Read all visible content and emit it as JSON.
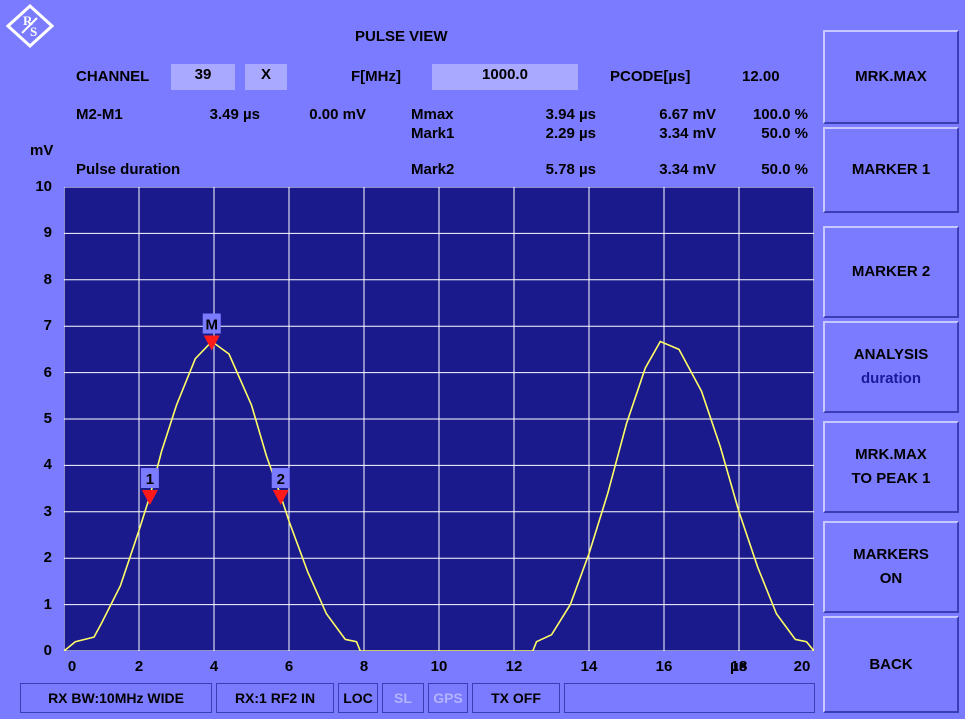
{
  "header": {
    "title": "PULSE VIEW",
    "channel_label": "CHANNEL",
    "channel_value": "39",
    "channel_suffix": "X",
    "freq_label": "F[MHz]",
    "freq_value": "1000.0",
    "pcode_label": "PCODE[µs]",
    "pcode_value": "12.00"
  },
  "readout": {
    "diff_label": "M2-M1",
    "diff_time": "3.49 µs",
    "diff_level": "0.00 mV",
    "mode_label": "Pulse duration",
    "markers": [
      {
        "name": "Mmax",
        "time": "3.94 µs",
        "level": "6.67 mV",
        "percent": "100.0 %"
      },
      {
        "name": "Mark1",
        "time": "2.29 µs",
        "level": "3.34 mV",
        "percent": "50.0 %"
      },
      {
        "name": "Mark2",
        "time": "5.78 µs",
        "level": "3.34 mV",
        "percent": "50.0 %"
      }
    ]
  },
  "chart_data": {
    "type": "line",
    "ylabel": "mV",
    "xlabel": "µs",
    "xlim": [
      0,
      20
    ],
    "ylim": [
      0,
      10
    ],
    "grid": true,
    "x_ticks": [
      "0",
      "2",
      "4",
      "6",
      "8",
      "10",
      "12",
      "14",
      "16",
      "18",
      "20"
    ],
    "x_tick_values": [
      0,
      2,
      4,
      6,
      8,
      10,
      12,
      14,
      16,
      18,
      20
    ],
    "y_ticks": [
      "0",
      "1",
      "2",
      "3",
      "4",
      "5",
      "6",
      "7",
      "8",
      "9",
      "10"
    ],
    "trace_color": "#ffff66",
    "series": [
      {
        "x": [
          0,
          0.3,
          0.8,
          1.0,
          1.5,
          2.0,
          2.29,
          2.6,
          3.0,
          3.5,
          3.94,
          4.4,
          5.0,
          5.4,
          5.78,
          6.0,
          6.5,
          7.0,
          7.5,
          7.8,
          7.9,
          12.5,
          12.6,
          13.0,
          13.5,
          14.0,
          14.5,
          15.0,
          15.5,
          15.9,
          16.4,
          17.0,
          17.5,
          18.0,
          18.5,
          19.0,
          19.5,
          19.8,
          20
        ],
        "y": [
          0,
          0.2,
          0.3,
          0.6,
          1.4,
          2.6,
          3.34,
          4.3,
          5.3,
          6.3,
          6.67,
          6.4,
          5.3,
          4.2,
          3.34,
          2.8,
          1.7,
          0.8,
          0.25,
          0.2,
          0,
          0,
          0.2,
          0.35,
          1.0,
          2.1,
          3.4,
          4.9,
          6.1,
          6.67,
          6.5,
          5.6,
          4.4,
          3.0,
          1.8,
          0.8,
          0.25,
          0.2,
          0
        ]
      }
    ],
    "markers": [
      {
        "label": "M",
        "x": 3.94,
        "y": 6.67
      },
      {
        "label": "1",
        "x": 2.29,
        "y": 3.34
      },
      {
        "label": "2",
        "x": 5.78,
        "y": 3.34
      }
    ]
  },
  "softkeys": [
    {
      "label": "MRK.MAX",
      "sub": ""
    },
    {
      "label": "MARKER 1",
      "sub": ""
    },
    {
      "label": "MARKER 2",
      "sub": ""
    },
    {
      "label": "ANALYSIS",
      "sub": "duration"
    },
    {
      "label": "MRK.MAX",
      "sub": "TO PEAK 1"
    },
    {
      "label": "MARKERS",
      "sub": "ON"
    },
    {
      "label": "BACK",
      "sub": ""
    }
  ],
  "status_bar": [
    {
      "label": "RX BW:10MHz WIDE",
      "active": true
    },
    {
      "label": "RX:1 RF2 IN",
      "active": true
    },
    {
      "label": "LOC",
      "active": true
    },
    {
      "label": "SL",
      "active": false
    },
    {
      "label": "GPS",
      "active": false
    },
    {
      "label": "TX OFF",
      "active": true
    },
    {
      "label": "",
      "active": true
    }
  ],
  "colors": {
    "background": "#7b7bff",
    "plot_background": "#1a1a8c",
    "grid": "#ffffff",
    "trace": "#ffff66",
    "marker": "#ff1a1a",
    "marker_label_bg": "#7b7bff"
  }
}
